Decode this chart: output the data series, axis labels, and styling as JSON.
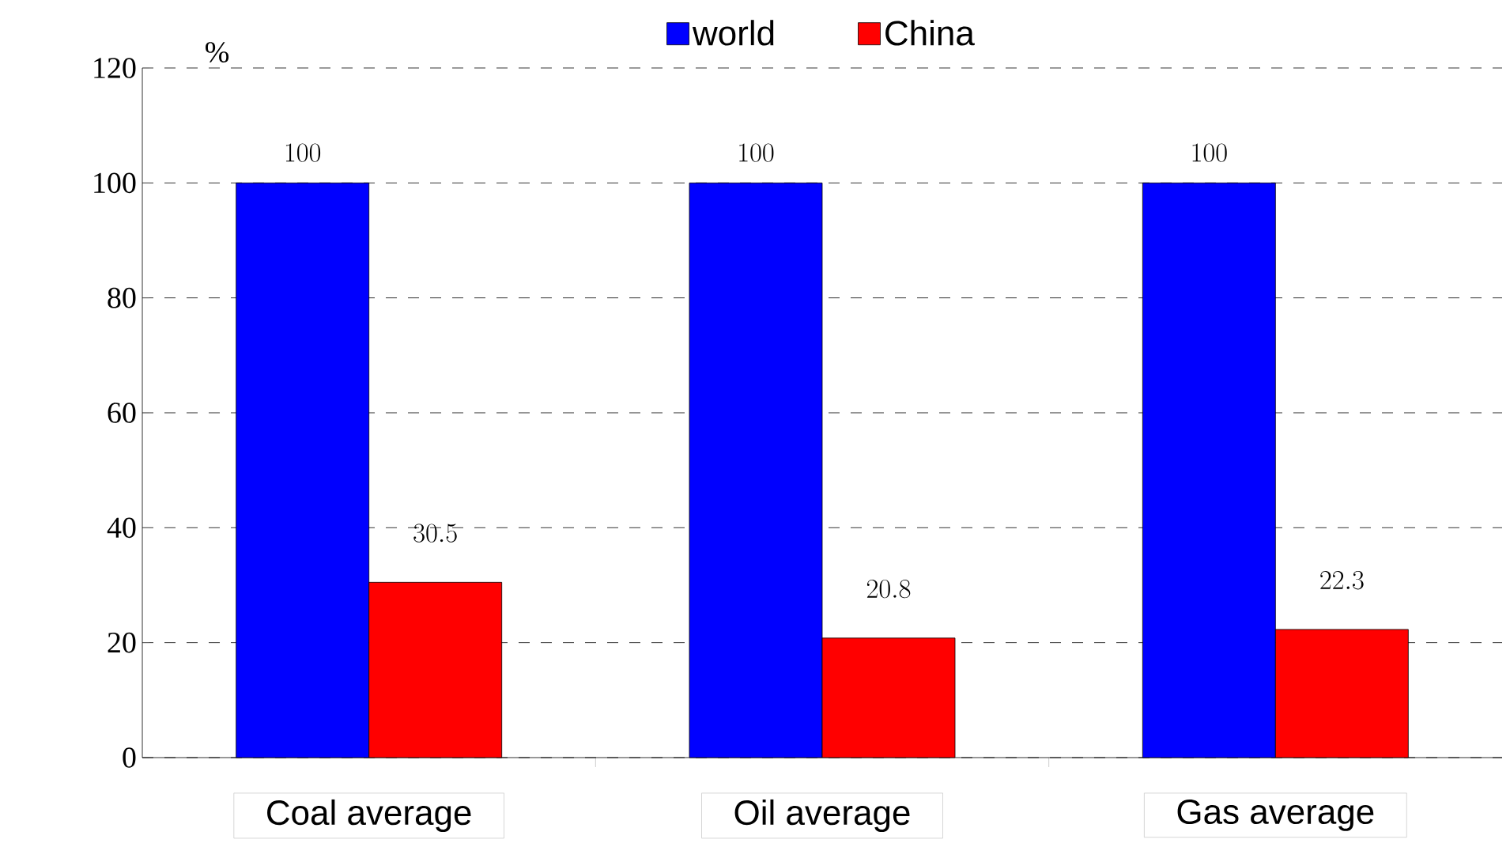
{
  "chart_data": {
    "type": "bar",
    "ylabel": "%",
    "categories": [
      "Coal average",
      "Oil average",
      "Gas average"
    ],
    "series": [
      {
        "name": "world",
        "color": "#0000ff",
        "values": [
          100,
          100,
          100
        ]
      },
      {
        "name": "China",
        "color": "#ff0000",
        "values": [
          30.5,
          20.8,
          22.3
        ]
      }
    ],
    "ylim": [
      0,
      120
    ],
    "yticks": [
      0,
      20,
      40,
      60,
      80,
      100,
      120
    ],
    "grid": "y",
    "legend": "top",
    "data_labels": true
  }
}
